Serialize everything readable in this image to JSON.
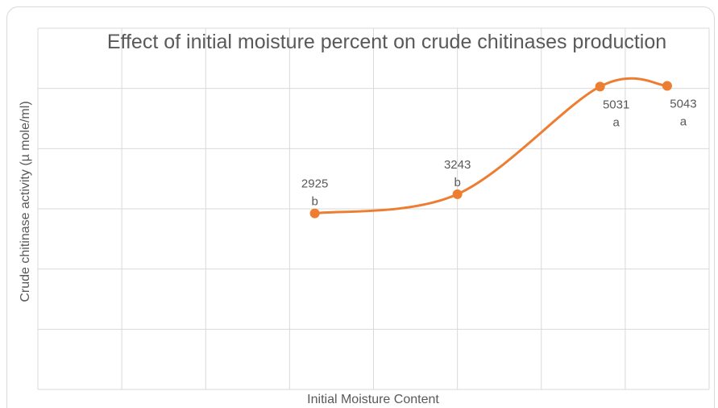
{
  "chart_data": {
    "type": "line",
    "smooth": true,
    "title": "Effect of initial moisture percent on crude chitinases production",
    "x_label": "Initial Moisture Content",
    "y_label": "Crude chitinase activity (µ mole/ml)",
    "x": [
      33,
      50,
      67,
      75
    ],
    "series": [
      {
        "color": "#ed7d31",
        "values": [
          2925,
          3243,
          5031,
          5043
        ],
        "significance_letters": [
          "b",
          "b",
          "a",
          "a"
        ],
        "label_positions": [
          "above",
          "above",
          "right",
          "right"
        ]
      }
    ],
    "xlim": [
      0,
      80
    ],
    "xticks": [
      0,
      10,
      20,
      30,
      40,
      50,
      60,
      70,
      80
    ],
    "ylim": [
      0,
      6000
    ],
    "yticks": [
      0,
      1000,
      2000,
      3000,
      4000,
      5000,
      6000
    ],
    "grid": true
  }
}
